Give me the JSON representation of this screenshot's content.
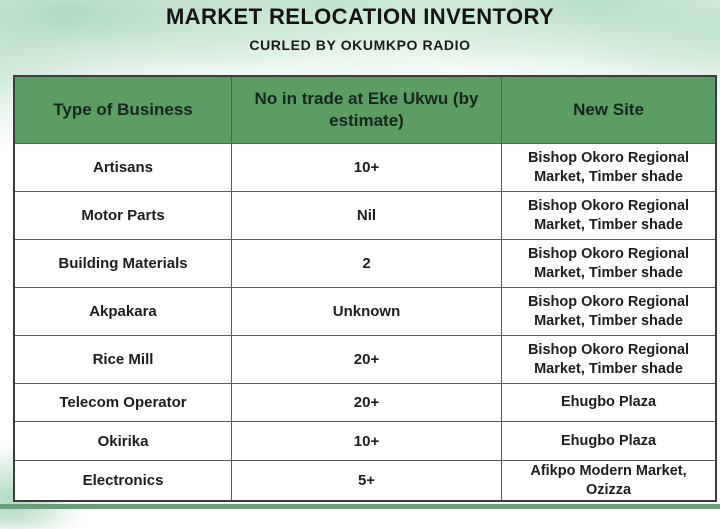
{
  "page": {
    "title": "MARKET RELOCATION INVENTORY",
    "subtitle": "CURLED BY OKUMKPO RADIO"
  },
  "table": {
    "columns": [
      "Type of Business",
      "No in trade at Eke Ukwu (by estimate)",
      "New Site"
    ],
    "rows": [
      {
        "business": "Artisans",
        "count": "10+",
        "new_site": "Bishop Okoro Regional Market, Timber shade"
      },
      {
        "business": "Motor Parts",
        "count": "Nil",
        "new_site": "Bishop Okoro Regional Market, Timber shade"
      },
      {
        "business": "Building Materials",
        "count": "2",
        "new_site": "Bishop Okoro Regional Market, Timber shade"
      },
      {
        "business": "Akpakara",
        "count": "Unknown",
        "new_site": "Bishop Okoro Regional Market, Timber shade"
      },
      {
        "business": "Rice Mill",
        "count": "20+",
        "new_site": "Bishop Okoro Regional Market, Timber shade"
      },
      {
        "business": "Telecom Operator",
        "count": "20+",
        "new_site": "Ehugbo Plaza"
      },
      {
        "business": "Okirika",
        "count": "10+",
        "new_site": "Ehugbo Plaza"
      },
      {
        "business": "Electronics",
        "count": "5+",
        "new_site": "Afikpo Modern Market, Ozizza"
      }
    ]
  },
  "colors": {
    "header_green": "#5c9d66",
    "bottom_bar_green": "#6b9e78",
    "watercolor_wash_green": "#bce3cb",
    "text_dark": "#1d1d1d",
    "border_dark": "#3c3c3c"
  }
}
